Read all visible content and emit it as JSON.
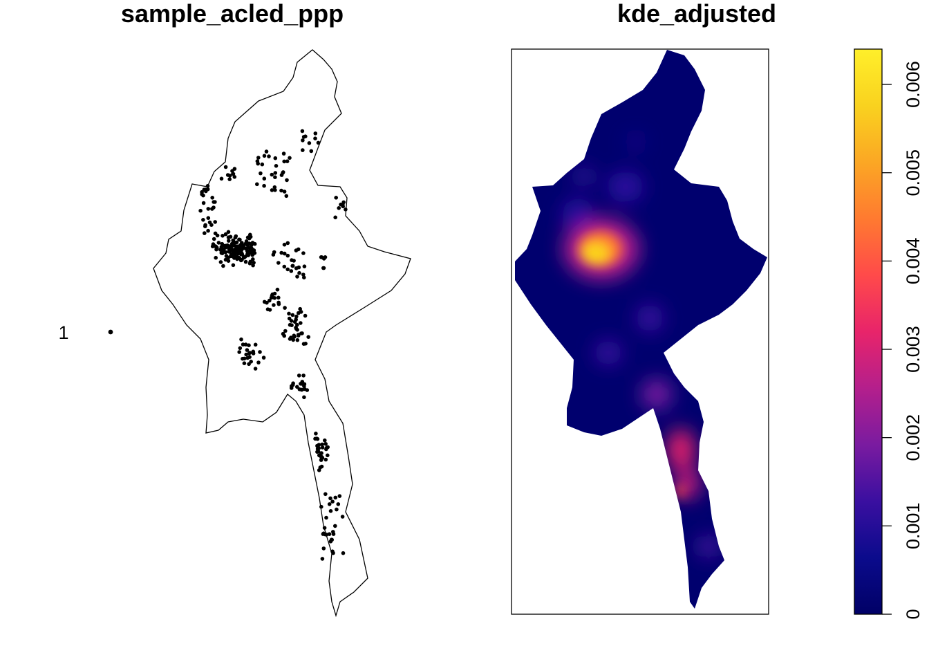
{
  "left_panel": {
    "title": "sample_acled_ppp",
    "mark_legend_label": "1",
    "point_color": "#000000",
    "outline_color": "#000000"
  },
  "right_panel": {
    "title": "kde_adjusted",
    "colorbar": {
      "ticks": [
        "0",
        "0.001",
        "0.002",
        "0.003",
        "0.004",
        "0.005",
        "0.006"
      ],
      "range": [
        0,
        0.0064
      ],
      "palette": [
        "#000066",
        "#0b0b8c",
        "#3a0fa0",
        "#7a1ba0",
        "#b41f8c",
        "#e8246a",
        "#ff4a4a",
        "#ff7a30",
        "#fba724",
        "#f9d21f",
        "#ffef2a"
      ]
    }
  }
}
